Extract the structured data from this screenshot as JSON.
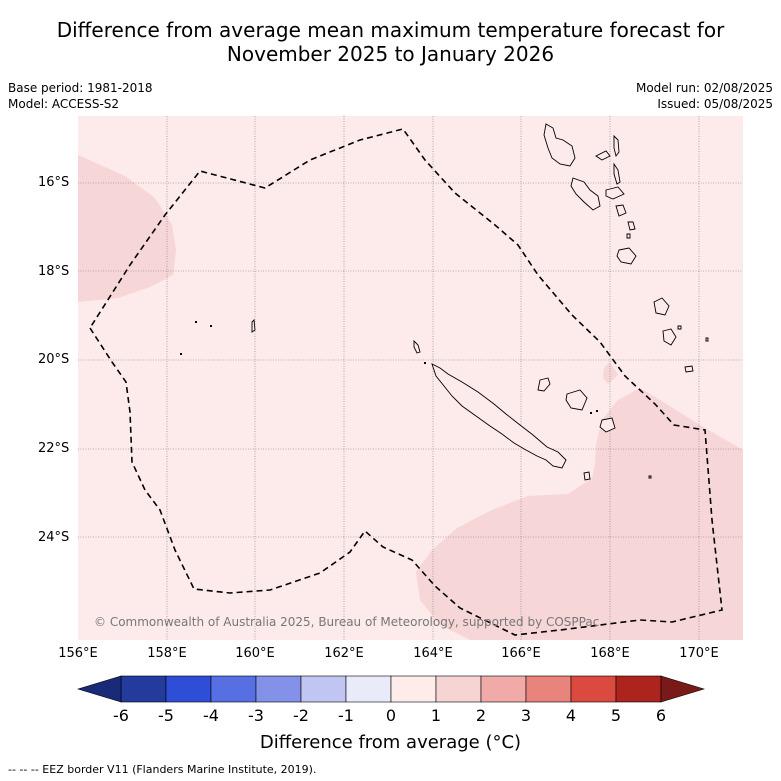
{
  "title_line1": "Difference from average mean maximum temperature forecast for",
  "title_line2": "November 2025 to January 2026",
  "base_period": "Base period: 1981-2018",
  "model": "Model: ACCESS-S2",
  "model_run": "Model run: 02/08/2025",
  "issued": "Issued: 05/08/2025",
  "lat_labels": [
    "16°S",
    "18°S",
    "20°S",
    "22°S",
    "24°S"
  ],
  "lon_labels": [
    "156°E",
    "158°E",
    "160°E",
    "162°E",
    "164°E",
    "166°E",
    "168°E",
    "170°E"
  ],
  "copyright": "© Commonwealth of Australia 2025, Bureau of Meteorology, supported by COSPPac",
  "colorbar": {
    "ticks": [
      "-6",
      "-5",
      "-4",
      "-3",
      "-2",
      "-1",
      "0",
      "1",
      "2",
      "3",
      "4",
      "5",
      "6"
    ],
    "colors": [
      "#243b9e",
      "#2e4ed8",
      "#5670e4",
      "#8392e8",
      "#c0c5f2",
      "#e9ebfa",
      "#fdecea",
      "#f6d4d4",
      "#f0aba8",
      "#e8847c",
      "#dc493e",
      "#ad241f"
    ],
    "under_color": "#182a78",
    "over_color": "#7a1a18",
    "title": "Difference from average (°C)"
  },
  "footnote": "--  --  -- EEZ border V11 (Flanders Marine Institute, 2019)."
}
